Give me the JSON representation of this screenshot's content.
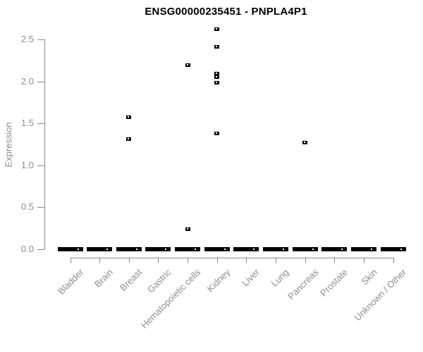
{
  "colors": {
    "title": "#000000",
    "axis": "#8a8a8a",
    "tick_label": "#8c8c8c",
    "point": "#000000",
    "background": "#ffffff"
  },
  "chart_data": {
    "type": "scatter",
    "title": "ENSG00000235451 - PNPLA4P1",
    "xlabel": "",
    "ylabel": "Expression",
    "ylim": [
      0,
      2.5
    ],
    "ytick_labels": [
      "0.0",
      "0.5",
      "1.0",
      "1.5",
      "2.0",
      "2.5"
    ],
    "ytick_values": [
      0.0,
      0.5,
      1.0,
      1.5,
      2.0,
      2.5
    ],
    "grid": false,
    "legend": false,
    "marker": "small-black-open-square",
    "categories": [
      "Bladder",
      "Brain",
      "Breast",
      "Gastric",
      "Hematopoietic cells",
      "Kidney",
      "Liver",
      "Lung",
      "Pancreas",
      "Prostate",
      "Skin",
      "Unknown / Other"
    ],
    "series": [
      {
        "category": "Bladder",
        "nonzero_values": [],
        "cluster_at_zero": true
      },
      {
        "category": "Brain",
        "nonzero_values": [],
        "cluster_at_zero": true
      },
      {
        "category": "Breast",
        "nonzero_values": [
          1.57,
          1.31
        ],
        "cluster_at_zero": true
      },
      {
        "category": "Gastric",
        "nonzero_values": [],
        "cluster_at_zero": true
      },
      {
        "category": "Hematopoietic cells",
        "nonzero_values": [
          2.19,
          0.24
        ],
        "cluster_at_zero": true
      },
      {
        "category": "Kidney",
        "nonzero_values": [
          2.62,
          2.41,
          2.09,
          2.05,
          1.98,
          1.38
        ],
        "cluster_at_zero": true
      },
      {
        "category": "Liver",
        "nonzero_values": [],
        "cluster_at_zero": true
      },
      {
        "category": "Lung",
        "nonzero_values": [],
        "cluster_at_zero": true
      },
      {
        "category": "Pancreas",
        "nonzero_values": [
          1.27
        ],
        "cluster_at_zero": true
      },
      {
        "category": "Prostate",
        "nonzero_values": [],
        "cluster_at_zero": true
      },
      {
        "category": "Skin",
        "nonzero_values": [],
        "cluster_at_zero": true
      },
      {
        "category": "Unknown / Other",
        "nonzero_values": [],
        "cluster_at_zero": true
      }
    ]
  }
}
